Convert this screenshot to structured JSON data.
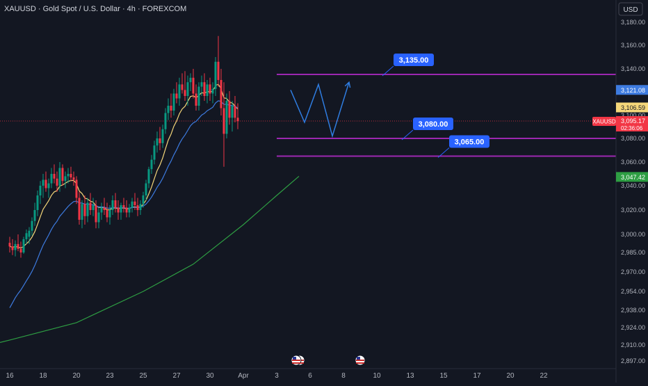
{
  "header": {
    "symbol_title": "XAUUSD · Gold Spot / U.S. Dollar · 4h · FOREXCOM"
  },
  "currency_button": {
    "label": "USD"
  },
  "colors": {
    "background": "#131722",
    "up": "#089981",
    "down": "#f23645",
    "ema_fast": "#f5d77a",
    "ema_mid": "#3d7be0",
    "ema_slow": "#2e9e43",
    "level_line": "#9c27b0",
    "callout": "#2962ff",
    "projection": "#2f7de1",
    "axis_text": "#b2b5be"
  },
  "chart_data": {
    "type": "candlestick",
    "timeframe": "4h",
    "y_axis": {
      "side": "right",
      "range": [
        2892,
        3190
      ],
      "ticks": [
        "3,180.00",
        "3,160.00",
        "3,140.00",
        "3,120.00",
        "3,100.00",
        "3,080.00",
        "3,060.00",
        "3,040.00",
        "3,020.00",
        "3,000.00",
        "2,985.00",
        "2,970.00",
        "2,954.00",
        "2,938.00",
        "2,924.00",
        "2,910.00",
        "2,897.00"
      ]
    },
    "x_axis": {
      "labels": [
        {
          "text": "16",
          "bar": 0
        },
        {
          "text": "18",
          "bar": 12
        },
        {
          "text": "20",
          "bar": 24
        },
        {
          "text": "23",
          "bar": 36
        },
        {
          "text": "25",
          "bar": 48
        },
        {
          "text": "27",
          "bar": 60
        },
        {
          "text": "30",
          "bar": 72
        },
        {
          "text": "Apr",
          "bar": 84
        },
        {
          "text": "3",
          "bar": 96
        },
        {
          "text": "6",
          "bar": 108
        },
        {
          "text": "8",
          "bar": 120
        },
        {
          "text": "10",
          "bar": 132
        },
        {
          "text": "13",
          "bar": 144
        },
        {
          "text": "15",
          "bar": 156
        },
        {
          "text": "17",
          "bar": 168
        },
        {
          "text": "20",
          "bar": 180
        },
        {
          "text": "22",
          "bar": 192
        }
      ]
    },
    "candles": [
      [
        2993,
        2998,
        2985,
        2990
      ],
      [
        2990,
        2996,
        2983,
        2987
      ],
      [
        2987,
        2995,
        2982,
        2992
      ],
      [
        2992,
        3000,
        2986,
        2988
      ],
      [
        2988,
        2994,
        2981,
        2985
      ],
      [
        2985,
        2998,
        2984,
        2996
      ],
      [
        2996,
        3004,
        2992,
        3001
      ],
      [
        2998,
        3006,
        2992,
        3003
      ],
      [
        3003,
        3014,
        2999,
        3011
      ],
      [
        3011,
        3026,
        3007,
        3020
      ],
      [
        3020,
        3036,
        3015,
        3032
      ],
      [
        3032,
        3044,
        3025,
        3040
      ],
      [
        3040,
        3050,
        3030,
        3045
      ],
      [
        3045,
        3052,
        3035,
        3038
      ],
      [
        3038,
        3046,
        3030,
        3042
      ],
      [
        3042,
        3055,
        3038,
        3050
      ],
      [
        3050,
        3058,
        3042,
        3046
      ],
      [
        3046,
        3052,
        3035,
        3040
      ],
      [
        3040,
        3060,
        3035,
        3055
      ],
      [
        3055,
        3058,
        3040,
        3044
      ],
      [
        3044,
        3052,
        3038,
        3048
      ],
      [
        3048,
        3055,
        3042,
        3050
      ],
      [
        3050,
        3056,
        3044,
        3047
      ],
      [
        3047,
        3052,
        3040,
        3045
      ],
      [
        3045,
        3048,
        3025,
        3030
      ],
      [
        3030,
        3035,
        3008,
        3012
      ],
      [
        3012,
        3028,
        3005,
        3025
      ],
      [
        3025,
        3032,
        3008,
        3015
      ],
      [
        3015,
        3030,
        3010,
        3026
      ],
      [
        3026,
        3034,
        3016,
        3020
      ],
      [
        3020,
        3030,
        3015,
        3024
      ],
      [
        3024,
        3028,
        3005,
        3010
      ],
      [
        3010,
        3022,
        3005,
        3018
      ],
      [
        3018,
        3026,
        3012,
        3022
      ],
      [
        3022,
        3030,
        3016,
        3020
      ],
      [
        3020,
        3026,
        3010,
        3014
      ],
      [
        3014,
        3024,
        3008,
        3020
      ],
      [
        3020,
        3032,
        3016,
        3028
      ],
      [
        3028,
        3034,
        3018,
        3022
      ],
      [
        3022,
        3028,
        3012,
        3018
      ],
      [
        3018,
        3026,
        3012,
        3024
      ],
      [
        3024,
        3030,
        3018,
        3022
      ],
      [
        3022,
        3028,
        3014,
        3018
      ],
      [
        3018,
        3025,
        3014,
        3022
      ],
      [
        3022,
        3030,
        3018,
        3027
      ],
      [
        3027,
        3034,
        3020,
        3024
      ],
      [
        3024,
        3030,
        3015,
        3020
      ],
      [
        3020,
        3028,
        3016,
        3025
      ],
      [
        3025,
        3035,
        3022,
        3032
      ],
      [
        3032,
        3045,
        3028,
        3042
      ],
      [
        3042,
        3056,
        3038,
        3054
      ],
      [
        3054,
        3066,
        3050,
        3062
      ],
      [
        3062,
        3078,
        3058,
        3074
      ],
      [
        3074,
        3086,
        3068,
        3080
      ],
      [
        3080,
        3090,
        3070,
        3076
      ],
      [
        3076,
        3092,
        3072,
        3088
      ],
      [
        3088,
        3106,
        3084,
        3102
      ],
      [
        3102,
        3114,
        3096,
        3108
      ],
      [
        3108,
        3118,
        3098,
        3104
      ],
      [
        3104,
        3122,
        3100,
        3118
      ],
      [
        3118,
        3128,
        3110,
        3114
      ],
      [
        3114,
        3132,
        3108,
        3126
      ],
      [
        3126,
        3136,
        3118,
        3121
      ],
      [
        3121,
        3138,
        3112,
        3116
      ],
      [
        3116,
        3134,
        3108,
        3128
      ],
      [
        3128,
        3136,
        3120,
        3132
      ],
      [
        3132,
        3140,
        3114,
        3118
      ],
      [
        3118,
        3126,
        3104,
        3108
      ],
      [
        3108,
        3128,
        3104,
        3124
      ],
      [
        3124,
        3134,
        3116,
        3128
      ],
      [
        3128,
        3136,
        3112,
        3116
      ],
      [
        3116,
        3130,
        3110,
        3126
      ],
      [
        3126,
        3132,
        3112,
        3118
      ],
      [
        3118,
        3128,
        3110,
        3122
      ],
      [
        3122,
        3150,
        3116,
        3146
      ],
      [
        3146,
        3168,
        3124,
        3130
      ],
      [
        3130,
        3140,
        3100,
        3106
      ],
      [
        3106,
        3128,
        3056,
        3084
      ],
      [
        3084,
        3118,
        3080,
        3112
      ],
      [
        3112,
        3120,
        3092,
        3098
      ],
      [
        3098,
        3112,
        3086,
        3108
      ],
      [
        3108,
        3116,
        3094,
        3098
      ],
      [
        3098,
        3110,
        3088,
        3095
      ]
    ],
    "indicators": [
      {
        "name": "",
        "type": "ema",
        "period": 9,
        "color": "#f5d77a"
      },
      {
        "name": "",
        "type": "ema",
        "period": 21,
        "color": "#3d7be0",
        "seed": 2935
      },
      {
        "name": "",
        "type": "ema",
        "period": 200,
        "color": "#2e9e43",
        "points": [
          [
            0,
            2914
          ],
          [
            24,
            2928
          ],
          [
            48,
            2954
          ],
          [
            66,
            2976
          ],
          [
            84,
            3008
          ],
          [
            96,
            3032
          ],
          [
            104,
            3048
          ]
        ]
      }
    ],
    "horizontal_levels": [
      {
        "price": 3135,
        "label": "3,135.00",
        "x_start_bar": 96,
        "callout_bar": 140
      },
      {
        "price": 3080,
        "label": "3,080.00",
        "x_start_bar": 96,
        "callout_bar": 147
      },
      {
        "price": 3065,
        "label": "3,065.00",
        "x_start_bar": 96,
        "callout_bar": 160
      }
    ],
    "projection_path": [
      [
        101,
        3121
      ],
      [
        106,
        3094
      ],
      [
        111,
        3126
      ],
      [
        116,
        3082
      ],
      [
        122,
        3128
      ]
    ],
    "price_tags": [
      {
        "price": 3121.08,
        "label": "3,121.08",
        "style": "ema-mid"
      },
      {
        "price": 3106.59,
        "label": "3,106.59",
        "style": "ema-fast"
      },
      {
        "price": 3095.17,
        "label": "3,095.17",
        "style": "last",
        "symbol": "XAUUSD",
        "countdown": "02:36:06"
      },
      {
        "price": 3047.42,
        "label": "3,047.42",
        "style": "ema-slow"
      }
    ],
    "events": [
      {
        "bar": 104,
        "count": 2
      },
      {
        "bar": 127,
        "count": 1
      }
    ],
    "grid": false,
    "legend": "none"
  }
}
